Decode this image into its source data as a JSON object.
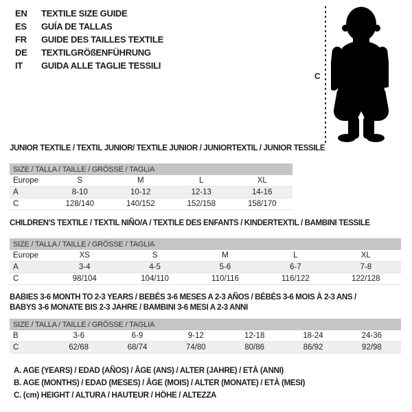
{
  "colors": {
    "text": "#1c1c1c",
    "table_header_bg": "#c5c5c5",
    "row_alt_bg": "#efefef",
    "silhouette": "#000000",
    "measure_line": "#2a2a2a"
  },
  "language_guide": {
    "items": [
      {
        "code": "EN",
        "label": "TEXTILE SIZE GUIDE"
      },
      {
        "code": "ES",
        "label": "GUÍA DE TALLAS"
      },
      {
        "code": "FR",
        "label": "GUIDE DES TAILLES TEXTILE"
      },
      {
        "code": "DE",
        "label": "TEXTILGRÖßENFÜHRUNG"
      },
      {
        "code": "IT",
        "label": "GUIDA ALLE TAGLIE TESSILI"
      }
    ]
  },
  "figure": {
    "icon": "baby-silhouette",
    "measure_label": "C"
  },
  "tables": [
    {
      "title_lines": [
        "JUNIOR TEXTILE / TEXTIL JUNIOR/ TEXTILE JUNIOR / JUNIORTEXTIL / JUNIOR TESSILE"
      ],
      "size_header": "SIZE / TALLA / TAILLE / GRÖSSE / TAGLIA",
      "rows": [
        [
          "Europe",
          "S",
          "M",
          "L",
          "XL"
        ],
        [
          "A",
          "8-10",
          "10-12",
          "12-13",
          "14-16"
        ],
        [
          "C",
          "128/140",
          "140/152",
          "152/158",
          "158/170"
        ]
      ]
    },
    {
      "title_lines": [
        "CHILDREN'S TEXTILE / TEXTIL NIÑO/A / TEXTILE DES ENFANTS / KINDERTEXTIL / BAMBINI TESSILE"
      ],
      "size_header": "SIZE / TALLA / TAILLE / GRÖSSE / TAGLIA",
      "rows": [
        [
          "Europe",
          "XS",
          "S",
          "M",
          "L",
          "XL"
        ],
        [
          "A",
          "3-4",
          "4-5",
          "5-6",
          "6-7",
          "7-8"
        ],
        [
          "C",
          "98/104",
          "104/110",
          "110/116",
          "116/122",
          "122/128"
        ]
      ]
    },
    {
      "title_lines": [
        "BABIES 3-6 MONTH TO 2-3 YEARS / BEBÉS 3-6 MESES A 2-3 AÑOS / BÉBÉS 3-6 MOIS À 2-3 ANS /",
        "BABYS 3-6 MONATE BIS 2-3 JAHRE / BAMBINI 3-6 MESI A 2-3 ANNI"
      ],
      "size_header": "SIZE / TALLA / TAILLE / GRÖSSE / TAGLIA",
      "rows": [
        [
          "B",
          "3-6",
          "6-9",
          "9-12",
          "12-18",
          "18-24",
          "24-36"
        ],
        [
          "C",
          "62/68",
          "68/74",
          "74/80",
          "80/86",
          "86/92",
          "92/98"
        ]
      ]
    }
  ],
  "footnotes": [
    "A. AGE (YEARS) / EDAD (AÑOS) / ÂGE (ANS) / ALTER (JAHRE) / ETÀ (ANNI)",
    "B. AGE (MONTHS) / EDAD (MESES) / ÂGE (MOIS) / ALTER (MONATE) / ETÀ (MESI)",
    "C. (cm) HEIGHT / ALTURA / HAUTEUR / HÖHE / ALTEZZA"
  ]
}
